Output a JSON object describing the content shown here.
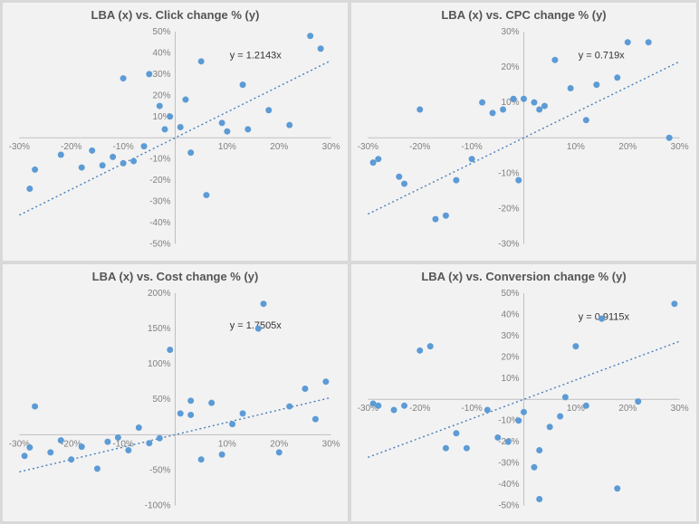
{
  "layout": {
    "rows": 2,
    "cols": 2
  },
  "background_color": "#f2f2f2",
  "grid_color": "#bfbfbf",
  "dot_color": "#5c9bd5",
  "trend_color": "#4a7ebb",
  "tick_label_color": "#7f7f7f",
  "tick_fontsize": 10,
  "title_fontsize": 13,
  "title_color": "#555555",
  "marker_radius": 3.5,
  "charts": [
    {
      "id": "click",
      "type": "scatter",
      "title": "LBA (x) vs. Click change % (y)",
      "equation": "y = 1.2143x",
      "slope": 1.2143,
      "xlim": [
        -30,
        30
      ],
      "ylim": [
        -50,
        50
      ],
      "xtick_step": 10,
      "ytick_step": 10,
      "tick_suffix": "%",
      "points": [
        [
          -28,
          -24
        ],
        [
          -27,
          -15
        ],
        [
          -22,
          -8
        ],
        [
          -18,
          -14
        ],
        [
          -16,
          -6
        ],
        [
          -14,
          -13
        ],
        [
          -12,
          -9
        ],
        [
          -10,
          -12
        ],
        [
          -10,
          28
        ],
        [
          -8,
          -11
        ],
        [
          -6,
          -4
        ],
        [
          -5,
          30
        ],
        [
          -3,
          15
        ],
        [
          -2,
          4
        ],
        [
          -1,
          10
        ],
        [
          1,
          5
        ],
        [
          2,
          18
        ],
        [
          3,
          -7
        ],
        [
          5,
          36
        ],
        [
          6,
          -27
        ],
        [
          9,
          7
        ],
        [
          10,
          3
        ],
        [
          13,
          25
        ],
        [
          14,
          4
        ],
        [
          18,
          13
        ],
        [
          22,
          6
        ],
        [
          26,
          48
        ],
        [
          28,
          42
        ]
      ]
    },
    {
      "id": "cpc",
      "type": "scatter",
      "title": "LBA (x) vs. CPC change % (y)",
      "equation": "y = 0.719x",
      "slope": 0.719,
      "xlim": [
        -30,
        30
      ],
      "ylim": [
        -30,
        30
      ],
      "xtick_step": 10,
      "ytick_step": 10,
      "tick_suffix": "%",
      "points": [
        [
          -29,
          -7
        ],
        [
          -28,
          -6
        ],
        [
          -24,
          -11
        ],
        [
          -23,
          -13
        ],
        [
          -20,
          8
        ],
        [
          -17,
          -23
        ],
        [
          -15,
          -22
        ],
        [
          -13,
          -12
        ],
        [
          -10,
          -6
        ],
        [
          -8,
          10
        ],
        [
          -6,
          7
        ],
        [
          -4,
          8
        ],
        [
          -2,
          11
        ],
        [
          -1,
          -12
        ],
        [
          0,
          11
        ],
        [
          2,
          10
        ],
        [
          3,
          8
        ],
        [
          4,
          9
        ],
        [
          6,
          22
        ],
        [
          9,
          14
        ],
        [
          12,
          5
        ],
        [
          14,
          15
        ],
        [
          18,
          17
        ],
        [
          20,
          27
        ],
        [
          24,
          27
        ],
        [
          28,
          0
        ]
      ]
    },
    {
      "id": "cost",
      "type": "scatter",
      "title": "LBA (x) vs. Cost change % (y)",
      "equation": "y = 1.7505x",
      "slope": 1.7505,
      "xlim": [
        -30,
        30
      ],
      "ylim": [
        -100,
        200
      ],
      "xtick_step": 10,
      "ytick_step": 50,
      "tick_suffix": "%",
      "points": [
        [
          -29,
          -30
        ],
        [
          -28,
          -18
        ],
        [
          -27,
          40
        ],
        [
          -24,
          -25
        ],
        [
          -22,
          -8
        ],
        [
          -20,
          -35
        ],
        [
          -18,
          -17
        ],
        [
          -15,
          -48
        ],
        [
          -13,
          -10
        ],
        [
          -11,
          -4
        ],
        [
          -9,
          -22
        ],
        [
          -7,
          10
        ],
        [
          -5,
          -12
        ],
        [
          -3,
          -5
        ],
        [
          -1,
          120
        ],
        [
          1,
          30
        ],
        [
          3,
          48
        ],
        [
          3,
          28
        ],
        [
          5,
          -35
        ],
        [
          7,
          45
        ],
        [
          9,
          -28
        ],
        [
          11,
          15
        ],
        [
          13,
          30
        ],
        [
          16,
          150
        ],
        [
          17,
          185
        ],
        [
          20,
          -25
        ],
        [
          22,
          40
        ],
        [
          25,
          65
        ],
        [
          27,
          22
        ],
        [
          29,
          75
        ]
      ]
    },
    {
      "id": "conv",
      "type": "scatter",
      "title": "LBA (x) vs. Conversion change % (y)",
      "equation": "y = 0.9115x",
      "slope": 0.9115,
      "xlim": [
        -30,
        30
      ],
      "ylim": [
        -50,
        50
      ],
      "xtick_step": 10,
      "ytick_step": 10,
      "tick_suffix": "%",
      "points": [
        [
          -29,
          -2
        ],
        [
          -28,
          -3
        ],
        [
          -25,
          -5
        ],
        [
          -23,
          -3
        ],
        [
          -20,
          23
        ],
        [
          -18,
          25
        ],
        [
          -15,
          -23
        ],
        [
          -13,
          -16
        ],
        [
          -11,
          -23
        ],
        [
          -7,
          -5
        ],
        [
          -5,
          -18
        ],
        [
          -3,
          -20
        ],
        [
          -1,
          -10
        ],
        [
          0,
          -6
        ],
        [
          2,
          -32
        ],
        [
          3,
          -24
        ],
        [
          3,
          -47
        ],
        [
          5,
          -13
        ],
        [
          7,
          -8
        ],
        [
          8,
          1
        ],
        [
          10,
          25
        ],
        [
          12,
          -3
        ],
        [
          15,
          38
        ],
        [
          18,
          -42
        ],
        [
          22,
          -1
        ],
        [
          29,
          45
        ]
      ]
    }
  ]
}
